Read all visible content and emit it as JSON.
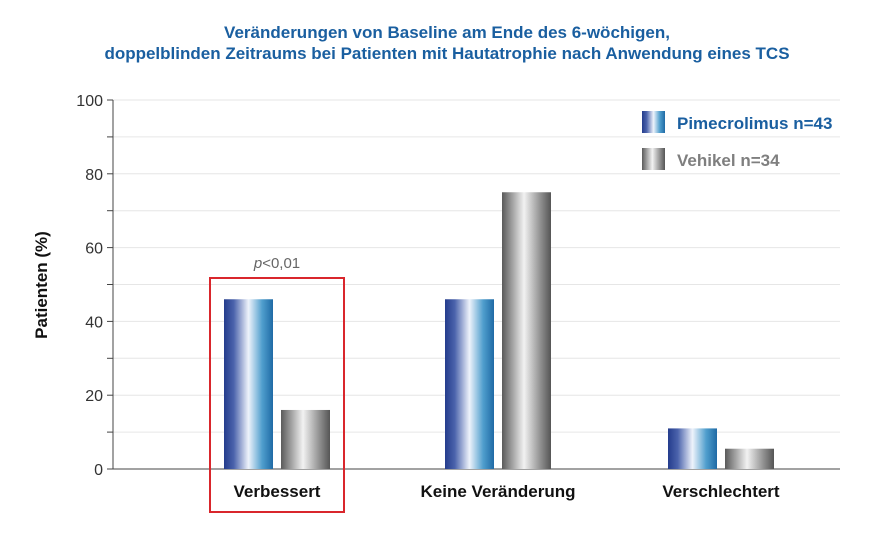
{
  "chart_data": {
    "type": "bar",
    "title_line1": "Veränderungen von Baseline am Ende des 6-wöchigen,",
    "title_line2": "doppelblinden Zeitraums bei Patienten mit Hautatrophie nach Anwendung eines TCS",
    "ylabel": "Patienten (%)",
    "xlabel": "",
    "ylim": [
      0,
      100
    ],
    "yticks": [
      "0",
      "20",
      "40",
      "60",
      "80",
      "100"
    ],
    "categories": [
      "Verbessert",
      "Keine Veränderung",
      "Verschlechtert"
    ],
    "series": [
      {
        "name": "Pimecrolimus n=43",
        "values": [
          46,
          46,
          11
        ]
      },
      {
        "name": "Vehikel n=34",
        "values": [
          16,
          75,
          5.5
        ]
      }
    ],
    "legend_position": "top-right",
    "grid": true,
    "annotation": {
      "prefix": "p",
      "text": "<0,01",
      "category": "Verbessert"
    },
    "highlight_category": "Verbessert",
    "colors": {
      "title": "#1a5fa0",
      "highlight": "#d9262c",
      "grid": "#e6e6e6"
    }
  }
}
